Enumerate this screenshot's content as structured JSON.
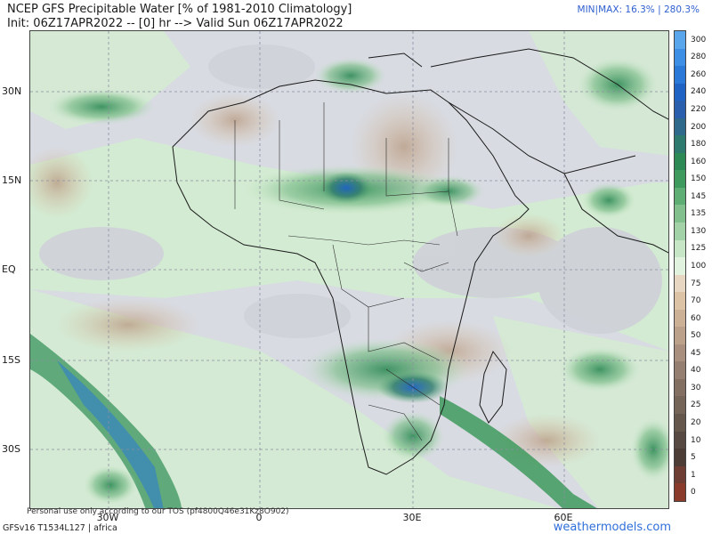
{
  "header": {
    "title_line1": "NCEP GFS Precipitable Water [% of 1981-2010 Climatology]",
    "title_line2": "Init: 06Z17APR2022 -- [0] hr --> Valid Sun 06Z17APR2022",
    "minmax": "MIN|MAX: 16.3% | 280.3%"
  },
  "map": {
    "region": "africa",
    "lat_labels": [
      "30N",
      "15N",
      "EQ",
      "15S",
      "30S"
    ],
    "lon_labels": [
      "30W",
      "0",
      "30E",
      "60E"
    ]
  },
  "colorbar": {
    "labels": [
      "300",
      "280",
      "260",
      "240",
      "220",
      "200",
      "180",
      "160",
      "150",
      "145",
      "135",
      "130",
      "125",
      "100",
      "75",
      "70",
      "60",
      "50",
      "45",
      "40",
      "30",
      "25",
      "20",
      "10",
      "5",
      "1",
      "0"
    ],
    "colors": [
      "#5aa6ec",
      "#3d8fe6",
      "#2a78d8",
      "#1f63c4",
      "#2a5fae",
      "#2f6a8c",
      "#2f7a6e",
      "#2e8a55",
      "#3f9a5e",
      "#5fae73",
      "#82c08e",
      "#a3d2a8",
      "#c6e6c6",
      "#e1f3df",
      "#e7d6c2",
      "#dcc3a6",
      "#cdb196",
      "#bba08a",
      "#a88f7e",
      "#957f70",
      "#847063",
      "#756458",
      "#66574d",
      "#574a42",
      "#4c3e37",
      "#6e3e34",
      "#8a3b2c"
    ]
  },
  "footer": {
    "model": "GFSv16 T1534L127 | africa",
    "credit": "Personal use only according to our TOS (pf4800Q46e31Kz8O902)",
    "site": "weathermodels.com"
  }
}
